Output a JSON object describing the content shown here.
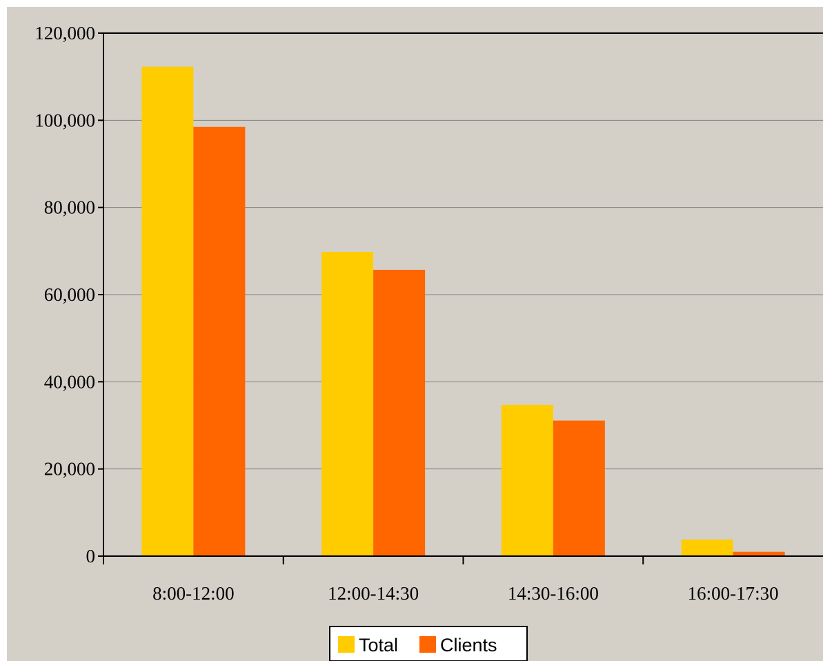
{
  "chart_data": {
    "type": "bar",
    "categories": [
      "8:00-12:00",
      "12:00-14:30",
      "14:30-16:00",
      "16:00-17:30"
    ],
    "series": [
      {
        "name": "Total",
        "color": "#ffcc00",
        "values": [
          112300,
          69800,
          34700,
          3800
        ]
      },
      {
        "name": "Clients",
        "color": "#ff6600",
        "values": [
          98500,
          65700,
          31100,
          1000
        ]
      }
    ],
    "ylim": [
      0,
      120000
    ],
    "yticks": [
      0,
      20000,
      40000,
      60000,
      80000,
      100000,
      120000
    ],
    "ytick_labels": [
      "0",
      "20,000",
      "40,000",
      "60,000",
      "80,000",
      "100,000",
      "120,000"
    ],
    "grid": "horizontal",
    "legend": "bottom-center",
    "background": "#d4d0c8"
  }
}
